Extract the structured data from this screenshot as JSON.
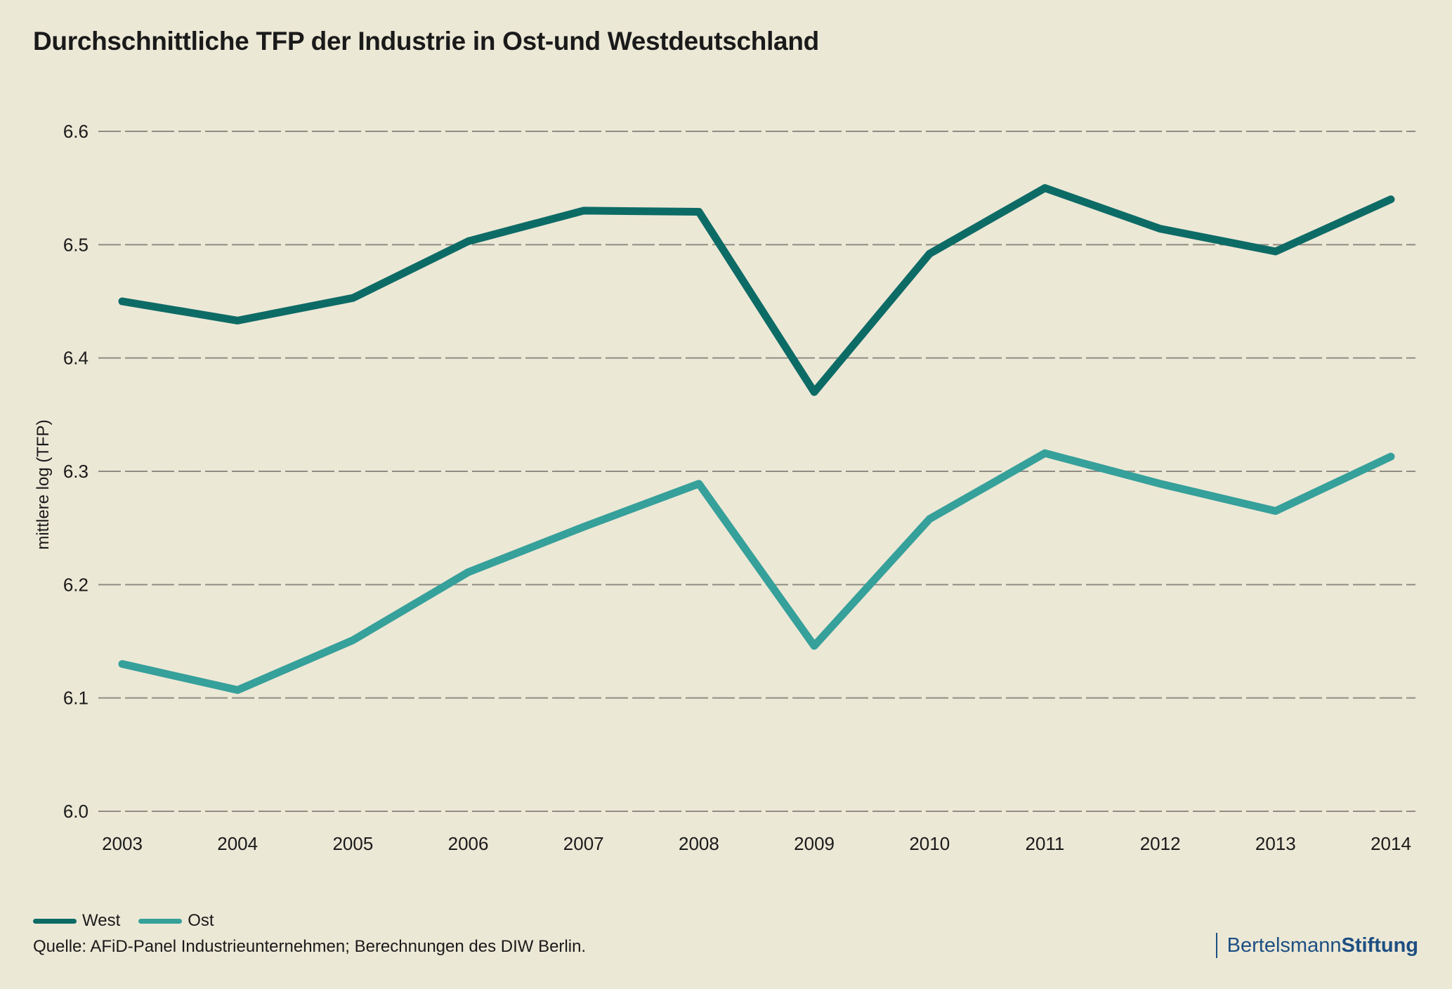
{
  "colors": {
    "background": "#ece8d6",
    "west": "#0d6b66",
    "ost": "#36a09a",
    "grid": "#8e8c84",
    "brand": "#1d4f82"
  },
  "title": "Durchschnittliche TFP der Industrie in Ost-und Westdeutschland",
  "source": "Quelle: AFiD-Panel Industrieunternehmen; Berechnungen des DIW Berlin.",
  "brand": {
    "regular": "Bertelsmann",
    "bold": "Stiftung"
  },
  "legend": [
    {
      "label": "West",
      "color": "#0d6b66"
    },
    {
      "label": "Ost",
      "color": "#36a09a"
    }
  ],
  "chart_data": {
    "type": "line",
    "title": "Durchschnittliche TFP der Industrie in Ost-und Westdeutschland",
    "xlabel": "",
    "ylabel": "mittlere log (TFP)",
    "x": [
      "2003",
      "2004",
      "2005",
      "2006",
      "2007",
      "2008",
      "2009",
      "2010",
      "2011",
      "2012",
      "2013",
      "2014"
    ],
    "ylim": [
      6.0,
      6.6
    ],
    "yticks": [
      "6.0",
      "6.1",
      "6.2",
      "6.3",
      "6.4",
      "6.5",
      "6.6"
    ],
    "grid": true,
    "legend_position": "bottom-left",
    "series": [
      {
        "name": "West",
        "color": "#0d6b66",
        "values": [
          6.45,
          6.433,
          6.453,
          6.503,
          6.53,
          6.529,
          6.37,
          6.492,
          6.55,
          6.514,
          6.494,
          6.54
        ]
      },
      {
        "name": "Ost",
        "color": "#36a09a",
        "values": [
          6.13,
          6.107,
          6.151,
          6.211,
          6.251,
          6.289,
          6.146,
          6.258,
          6.316,
          6.289,
          6.265,
          6.313
        ]
      }
    ]
  }
}
